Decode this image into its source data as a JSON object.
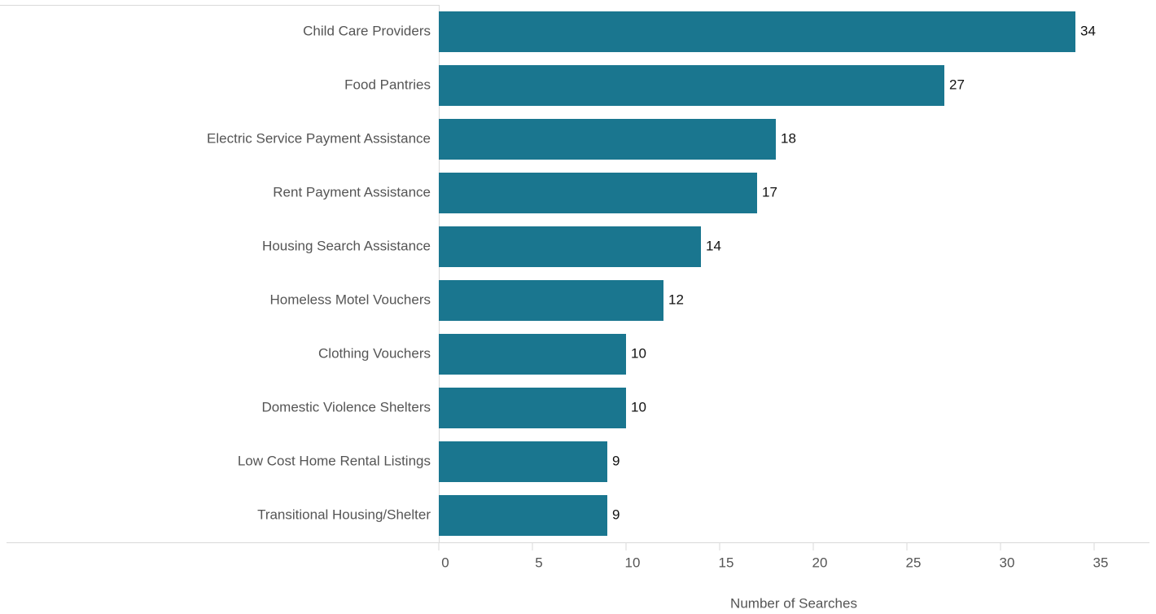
{
  "chart_data": {
    "type": "bar",
    "orientation": "horizontal",
    "categories": [
      "Child Care Providers",
      "Food Pantries",
      "Electric Service Payment Assistance",
      "Rent Payment Assistance",
      "Housing Search Assistance",
      "Homeless Motel Vouchers",
      "Clothing Vouchers",
      "Domestic Violence Shelters",
      "Low Cost Home Rental Listings",
      "Transitional Housing/Shelter"
    ],
    "values": [
      34,
      27,
      18,
      17,
      14,
      12,
      10,
      10,
      9,
      9
    ],
    "color": "#1a768f",
    "xlabel": "Number of Searches",
    "xlim": [
      0,
      38
    ],
    "xticks": [
      0,
      5,
      10,
      15,
      20,
      25,
      30,
      35
    ]
  }
}
